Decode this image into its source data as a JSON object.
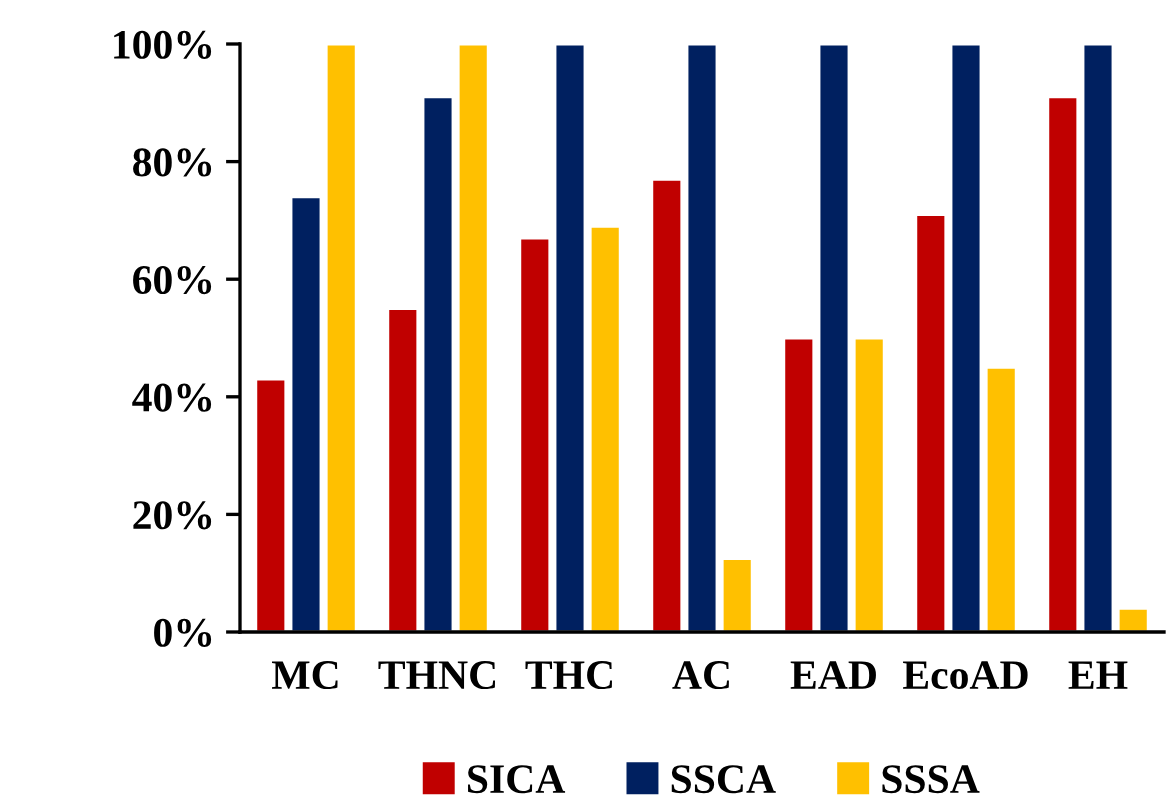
{
  "chart_data": {
    "type": "bar",
    "categories": [
      "MC",
      "THNC",
      "THC",
      "AC",
      "EAD",
      "EcoAD",
      "EH"
    ],
    "series": [
      {
        "name": "SICA",
        "color": "#c00000",
        "values": [
          43,
          55,
          67,
          77,
          50,
          71,
          91
        ]
      },
      {
        "name": "SSCA",
        "color": "#002060",
        "values": [
          74,
          91,
          100,
          100,
          100,
          100,
          100
        ]
      },
      {
        "name": "SSSA",
        "color": "#ffc000",
        "values": [
          100,
          100,
          69,
          12.5,
          50,
          45,
          4
        ]
      }
    ],
    "ylim": [
      0,
      100
    ],
    "yticks": [
      {
        "value": 0,
        "label": "0%"
      },
      {
        "value": 20,
        "label": "20%"
      },
      {
        "value": 40,
        "label": "40%"
      },
      {
        "value": 60,
        "label": "60%"
      },
      {
        "value": 80,
        "label": "80%"
      },
      {
        "value": 100,
        "label": "100%"
      }
    ],
    "grid": false,
    "legend": "bottom"
  }
}
